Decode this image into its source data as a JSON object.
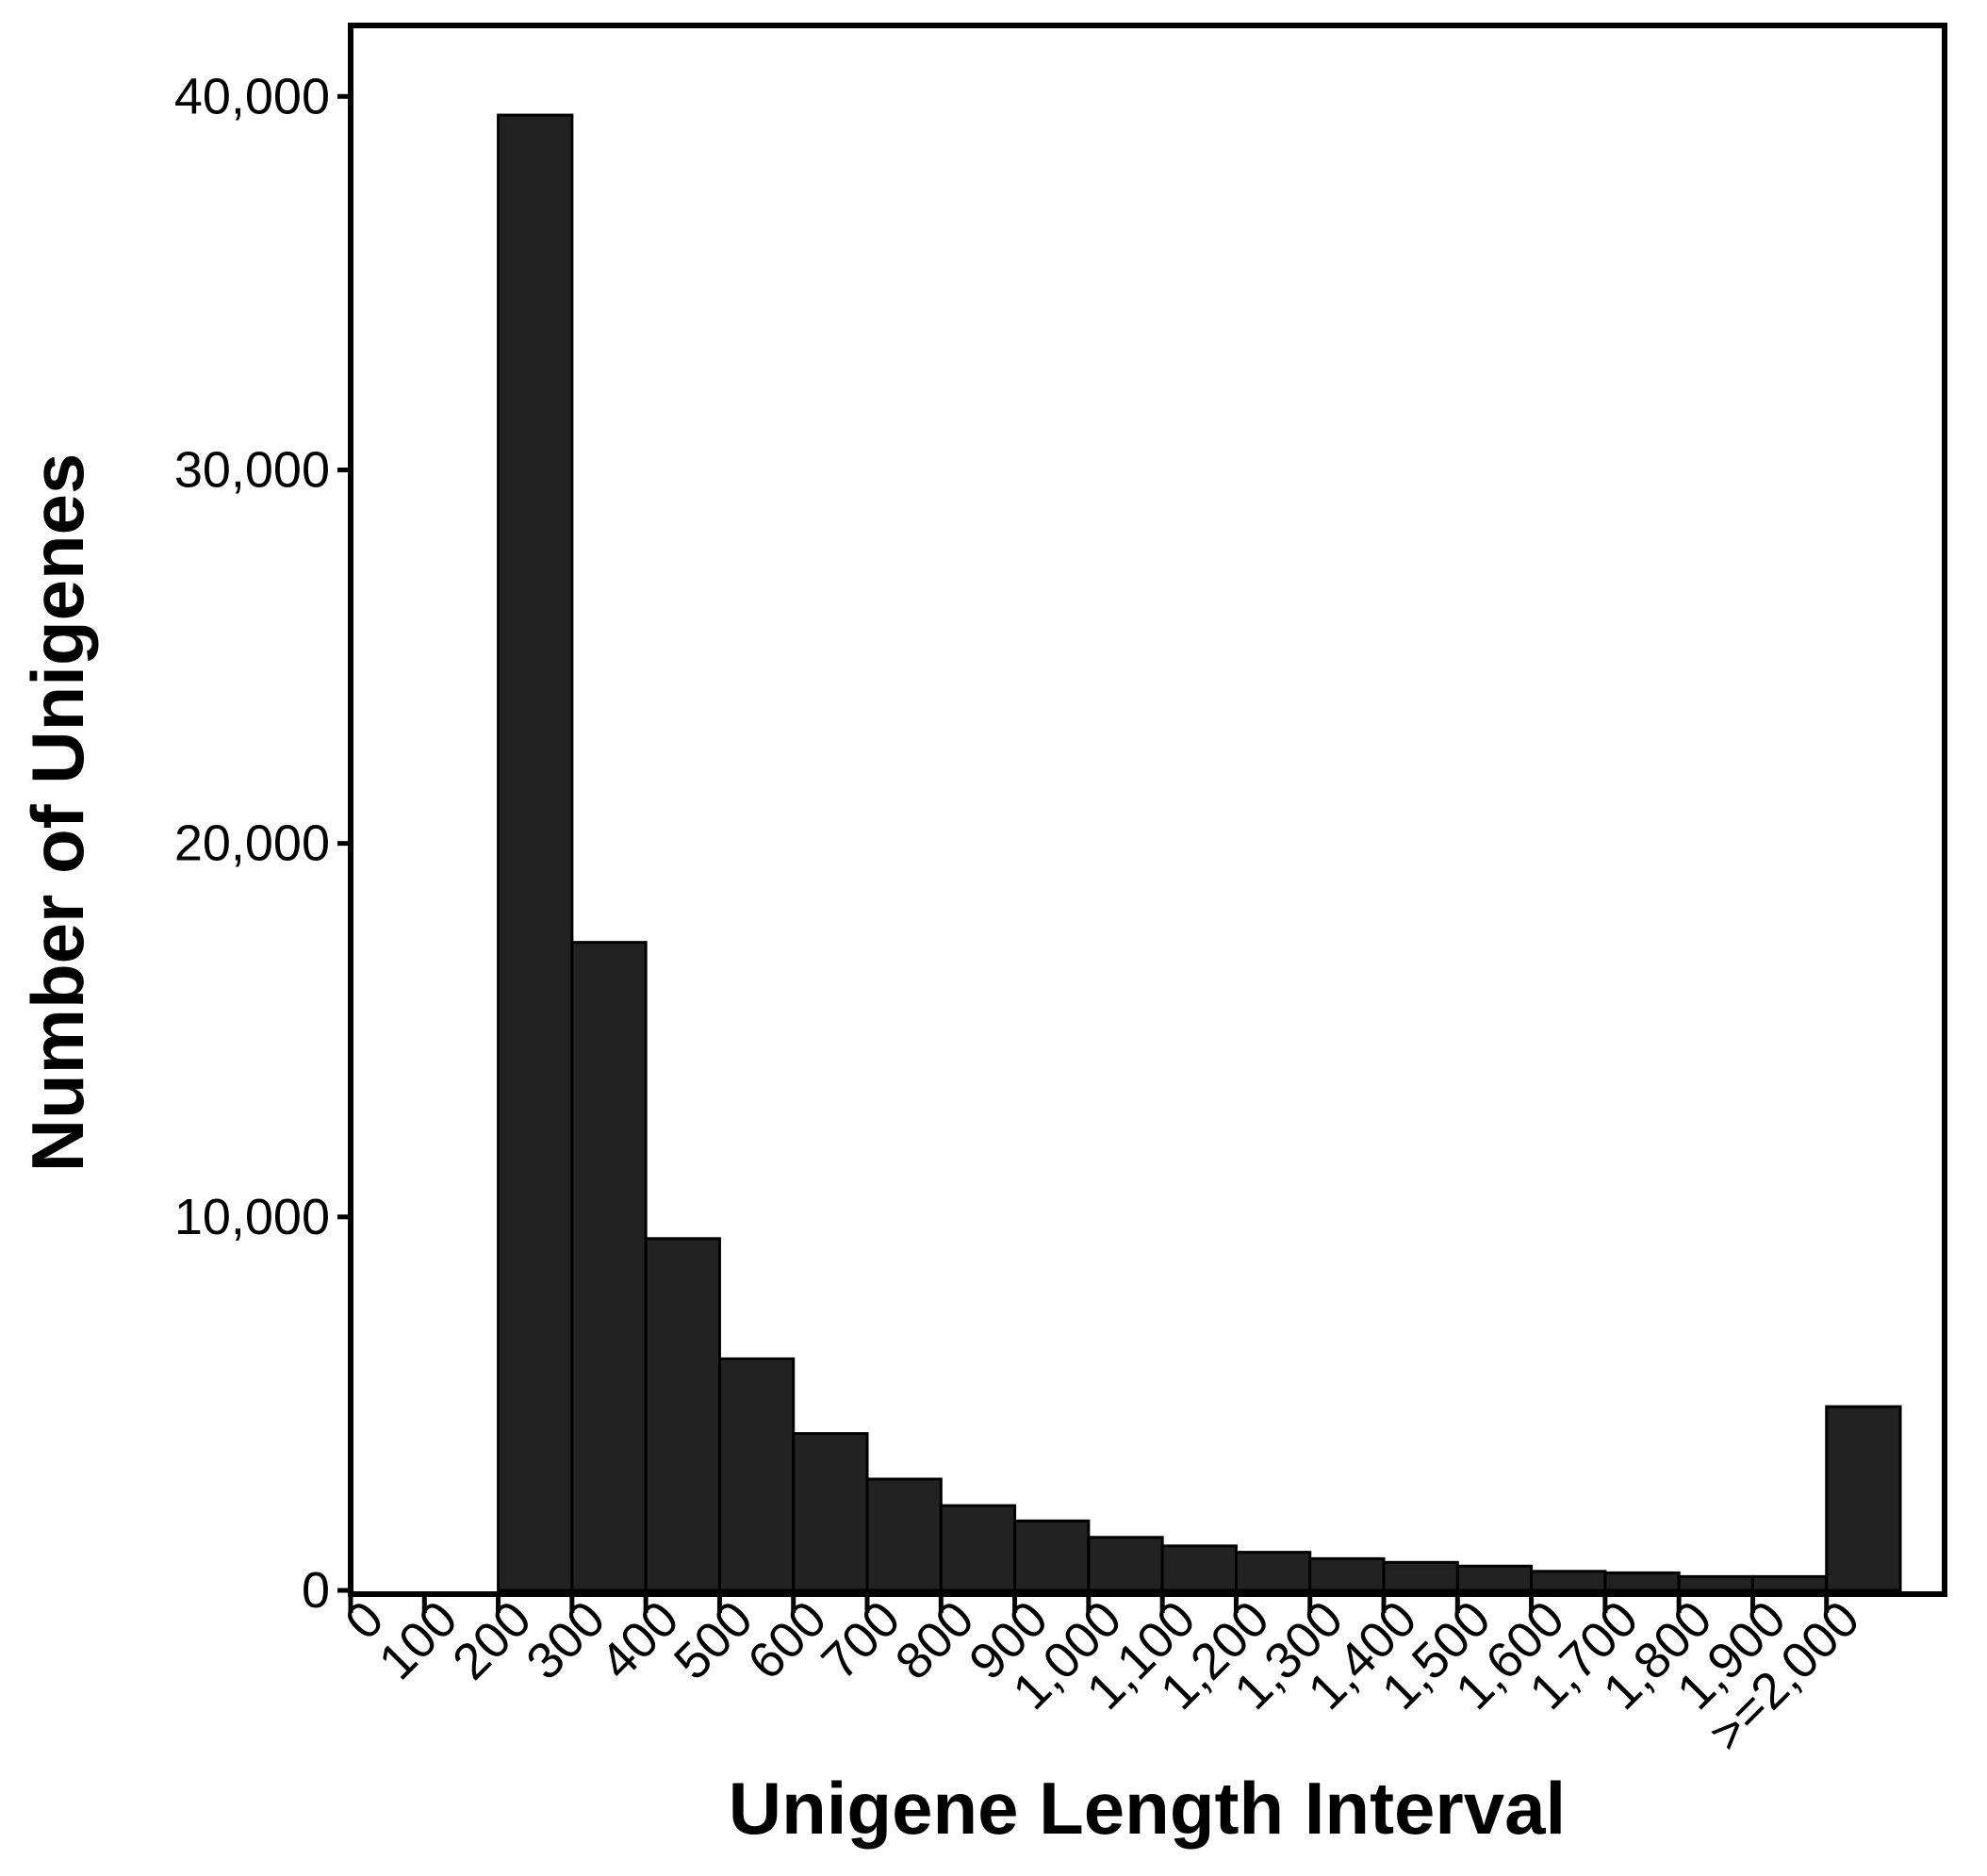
{
  "chart_data": {
    "type": "histogram",
    "x_label": "Unigene Length Interval",
    "y_label": "Number of Unigenes",
    "bins": [
      0,
      100,
      200,
      300,
      400,
      500,
      600,
      700,
      800,
      900,
      1000,
      1100,
      1200,
      1300,
      1400,
      1500,
      1600,
      1700,
      1800,
      1900,
      2000,
      2100
    ],
    "counts": [
      0,
      0,
      39500,
      17350,
      9420,
      6200,
      4200,
      2980,
      2270,
      1860,
      1420,
      1190,
      1020,
      850,
      750,
      650,
      510,
      470,
      370,
      370,
      4920
    ],
    "color": "#222222",
    "xlim": [
      0,
      2160
    ],
    "xticks": [
      0,
      100,
      200,
      300,
      400,
      500,
      600,
      700,
      800,
      900,
      {
        "value": 1000,
        "label": "1,000"
      },
      {
        "value": 1100,
        "label": "1,100"
      },
      {
        "value": 1200,
        "label": "1,200"
      },
      {
        "value": 1300,
        "label": "1,300"
      },
      {
        "value": 1400,
        "label": "1,400"
      },
      {
        "value": 1500,
        "label": "1,500"
      },
      {
        "value": 1600,
        "label": "1,600"
      },
      {
        "value": 1700,
        "label": "1,700"
      },
      {
        "value": 1800,
        "label": "1,800"
      },
      {
        "value": 1900,
        "label": "1,900"
      },
      {
        "value": 2000,
        "label": ">=2,000"
      }
    ],
    "ylim": [
      -100,
      41900
    ],
    "yticks": [
      0,
      {
        "value": 10000,
        "label": "10,000"
      },
      {
        "value": 20000,
        "label": "20,000"
      },
      {
        "value": 30000,
        "label": "30,000"
      },
      {
        "value": 40000,
        "label": "40,000"
      }
    ],
    "grid": false
  }
}
